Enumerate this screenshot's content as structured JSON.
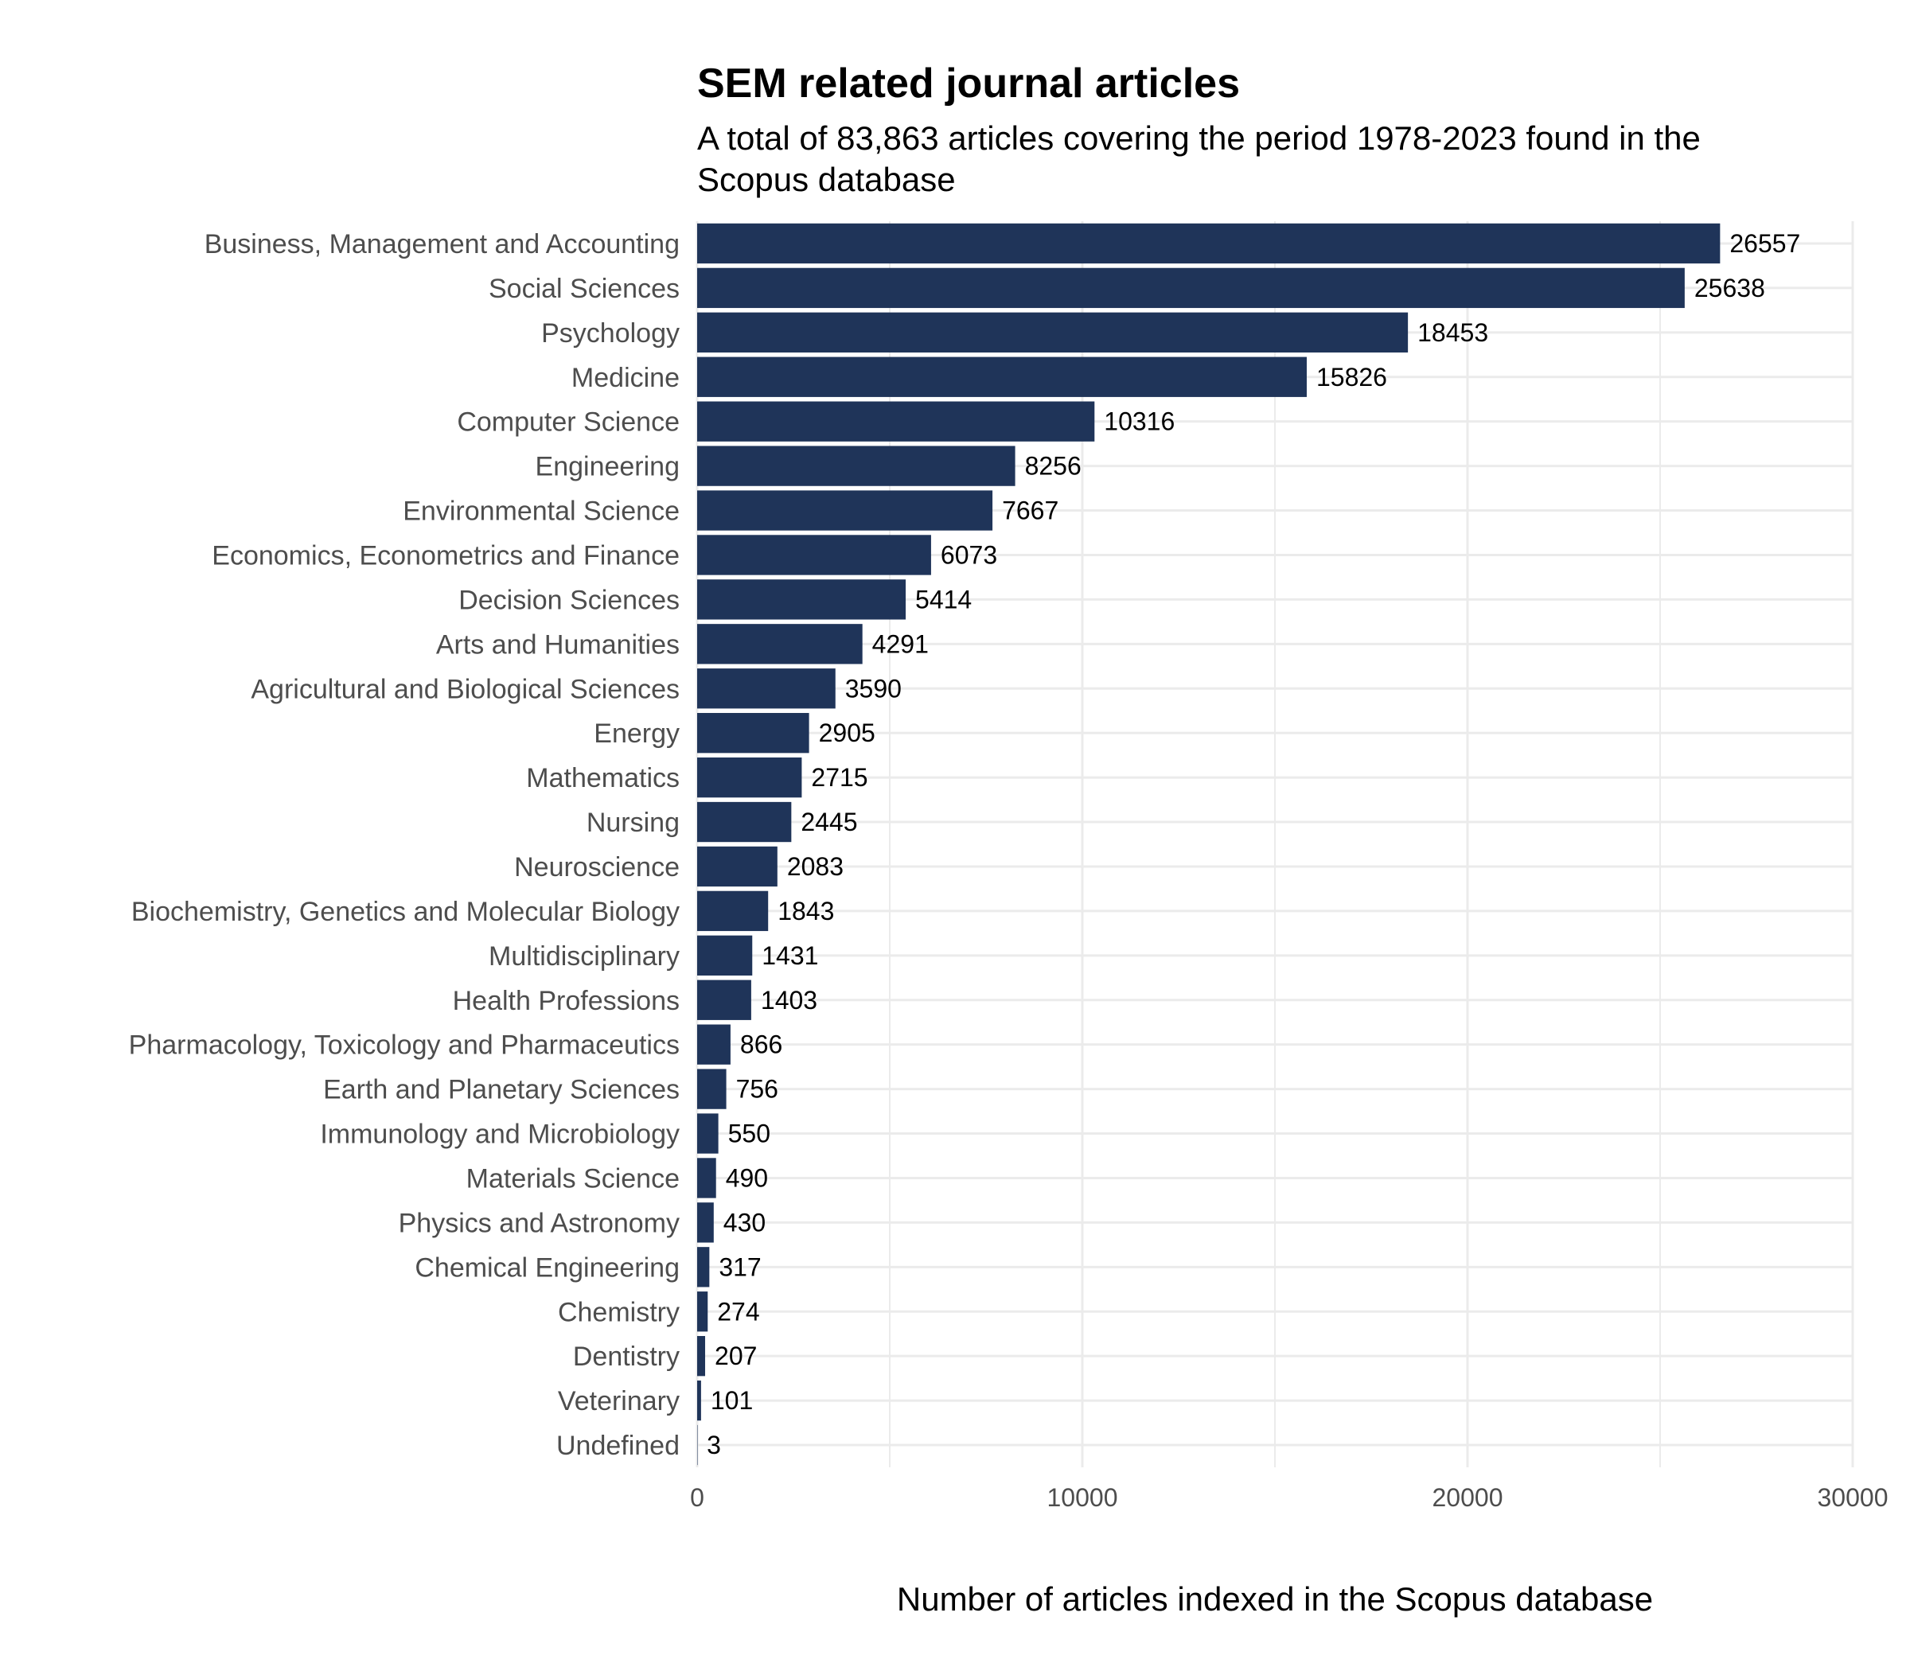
{
  "chart_data": {
    "type": "bar",
    "orientation": "horizontal",
    "title": "SEM related journal articles",
    "subtitle_lines": [
      "A total of 83,863 articles covering the period 1978-2023 found in the",
      "Scopus database"
    ],
    "xlabel": "Number of articles indexed in the Scopus database",
    "ylabel": "",
    "xlim": [
      0,
      30000
    ],
    "x_ticks": [
      0,
      10000,
      20000,
      30000
    ],
    "x_minor_ticks": [
      5000,
      15000,
      25000
    ],
    "grid": true,
    "legend": "none",
    "bar_color": "#1f3459",
    "grid_color": "#ebebeb",
    "categories": [
      "Business, Management and Accounting",
      "Social Sciences",
      "Psychology",
      "Medicine",
      "Computer Science",
      "Engineering",
      "Environmental Science",
      "Economics, Econometrics and Finance",
      "Decision Sciences",
      "Arts and Humanities",
      "Agricultural and Biological Sciences",
      "Energy",
      "Mathematics",
      "Nursing",
      "Neuroscience",
      "Biochemistry, Genetics and Molecular Biology",
      "Multidisciplinary",
      "Health Professions",
      "Pharmacology, Toxicology and Pharmaceutics",
      "Earth and Planetary Sciences",
      "Immunology and Microbiology",
      "Materials Science",
      "Physics and Astronomy",
      "Chemical Engineering",
      "Chemistry",
      "Dentistry",
      "Veterinary",
      "Undefined"
    ],
    "values": [
      26557,
      25638,
      18453,
      15826,
      10316,
      8256,
      7667,
      6073,
      5414,
      4291,
      3590,
      2905,
      2715,
      2445,
      2083,
      1843,
      1431,
      1403,
      866,
      756,
      550,
      490,
      430,
      317,
      274,
      207,
      101,
      3
    ]
  }
}
